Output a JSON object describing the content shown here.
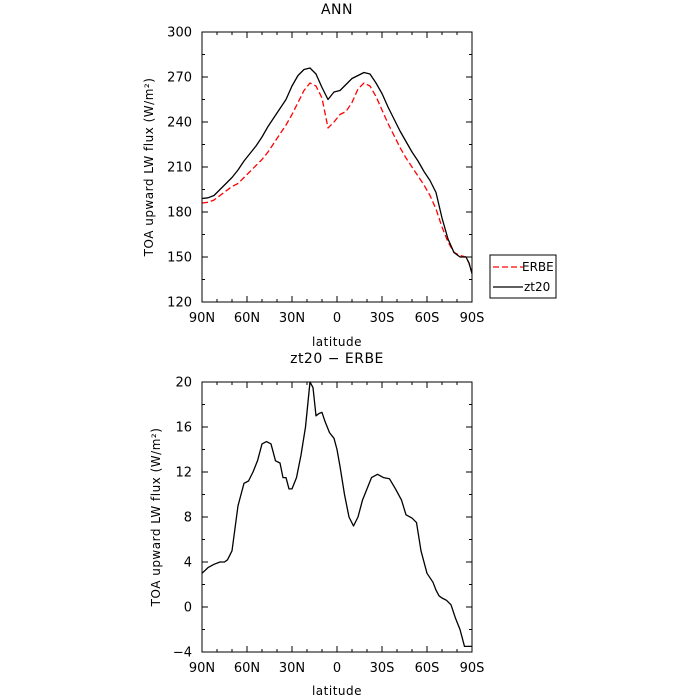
{
  "chart_data": [
    {
      "type": "line",
      "title": "ANN",
      "xlabel": "latitude",
      "ylabel": "TOA upward LW flux (W/m²)",
      "ylim": [
        120,
        300
      ],
      "xlim": [
        90,
        -90
      ],
      "yticks": [
        120,
        150,
        180,
        210,
        240,
        270,
        300
      ],
      "xticks": [
        90,
        60,
        30,
        0,
        -30,
        -60,
        -90
      ],
      "xtick_labels": [
        "90N",
        "60N",
        "30N",
        "0",
        "30S",
        "60S",
        "90S"
      ],
      "legend_position": "right-of-plot",
      "series": [
        {
          "name": "ERBE",
          "color": "#ff0000",
          "dash": "dashed",
          "x": [
            90,
            86,
            82,
            78,
            74,
            70,
            66,
            62,
            58,
            54,
            50,
            46,
            42,
            38,
            34,
            30,
            26,
            22,
            18,
            14,
            10,
            6,
            2,
            -2,
            -6,
            -10,
            -14,
            -18,
            -22,
            -26,
            -30,
            -34,
            -38,
            -42,
            -46,
            -50,
            -54,
            -58,
            -62,
            -66,
            -70,
            -74,
            -78,
            -82,
            -86,
            -88,
            -90
          ],
          "y": [
            186,
            186.5,
            188,
            191,
            194,
            197,
            199,
            203,
            207,
            211,
            215,
            220,
            226,
            232,
            238,
            245,
            253,
            261,
            266,
            264,
            256,
            236,
            240,
            245,
            247,
            253,
            262,
            266,
            264,
            257,
            248,
            239,
            231,
            223,
            216,
            210,
            204,
            198,
            191,
            182,
            170,
            160,
            153,
            151,
            150,
            146,
            139
          ]
        },
        {
          "name": "zt20",
          "color": "#000000",
          "dash": "solid",
          "x": [
            90,
            86,
            82,
            78,
            74,
            70,
            66,
            62,
            58,
            54,
            50,
            46,
            42,
            38,
            34,
            30,
            26,
            22,
            18,
            14,
            10,
            6,
            2,
            -2,
            -6,
            -10,
            -14,
            -18,
            -22,
            -26,
            -30,
            -34,
            -38,
            -42,
            -46,
            -50,
            -54,
            -58,
            -62,
            -66,
            -70,
            -74,
            -78,
            -82,
            -86,
            -88,
            -90
          ],
          "y": [
            189,
            189.5,
            191,
            195,
            199,
            203,
            208,
            214,
            219,
            224,
            230,
            237,
            243,
            249,
            255,
            264,
            271,
            275,
            276,
            272,
            263,
            255,
            260,
            261,
            265,
            269,
            271,
            273,
            272,
            266,
            259,
            250,
            242,
            234,
            227,
            220,
            214,
            207,
            201,
            193,
            176,
            162,
            153,
            150,
            150,
            146,
            139
          ]
        }
      ]
    },
    {
      "type": "line",
      "title": "zt20 − ERBE",
      "xlabel": "latitude",
      "ylabel": "TOA upward LW flux (W/m²)",
      "ylim": [
        -4,
        20
      ],
      "xlim": [
        90,
        -90
      ],
      "yticks": [
        -4,
        0,
        4,
        8,
        12,
        16,
        20
      ],
      "xticks": [
        90,
        60,
        30,
        0,
        -30,
        -60,
        -90
      ],
      "xtick_labels": [
        "90N",
        "60N",
        "30N",
        "0",
        "30S",
        "60S",
        "90S"
      ],
      "series": [
        {
          "color": "#000000",
          "dash": "solid",
          "x": [
            90,
            86,
            82,
            78,
            75,
            73,
            70,
            68,
            66,
            64,
            62,
            59,
            56,
            53,
            50,
            47,
            44,
            41,
            38,
            36,
            34,
            32,
            30,
            27,
            24,
            21,
            18,
            16,
            14,
            12,
            10,
            8,
            5,
            2,
            0,
            -2,
            -5,
            -8,
            -11,
            -14,
            -17,
            -20,
            -23,
            -27,
            -31,
            -35,
            -39,
            -43,
            -46,
            -50,
            -53,
            -56,
            -60,
            -64,
            -66,
            -68,
            -70,
            -73,
            -76,
            -79,
            -82,
            -85,
            -87,
            -88,
            -90
          ],
          "y": [
            3,
            3.5,
            3.8,
            4,
            4,
            4.2,
            5,
            7,
            9,
            10,
            11,
            11.2,
            12,
            13,
            14.5,
            14.7,
            14.5,
            13,
            12.8,
            11.5,
            11.5,
            10.5,
            10.5,
            11.5,
            13.5,
            16,
            20,
            19.5,
            17,
            17.2,
            17.3,
            16.5,
            15.5,
            15,
            14,
            12.5,
            10,
            8,
            7.2,
            8,
            9.5,
            10.5,
            11.5,
            11.8,
            11.5,
            11.4,
            10.5,
            9.5,
            8.2,
            7.9,
            7.5,
            5,
            3,
            2.2,
            1.5,
            1,
            0.8,
            0.6,
            0.2,
            -1,
            -2,
            -3.5,
            -3.5,
            -3.5,
            -3.5
          ]
        }
      ]
    }
  ]
}
